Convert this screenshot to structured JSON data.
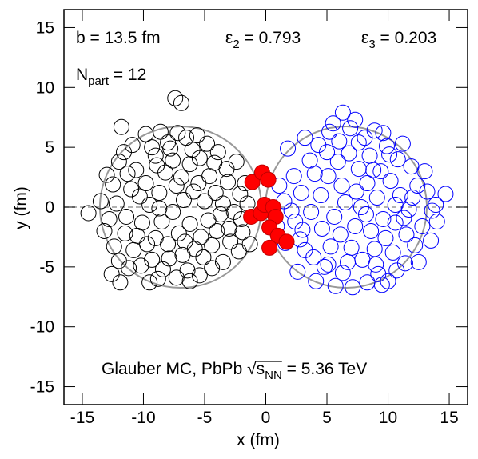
{
  "chart_data": {
    "type": "scatter",
    "xlabel": "x (fm)",
    "ylabel": "y (fm)",
    "xlim": [
      -16.5,
      16.5
    ],
    "xticks": [
      -15,
      -10,
      -5,
      0,
      5,
      10,
      15
    ],
    "ylim": [
      -16.5,
      16.5
    ],
    "yticks": [
      -15,
      -10,
      -5,
      0,
      5,
      10,
      15
    ],
    "annotations": {
      "b": "b = 13.5 fm",
      "eps2": {
        "symbol": "ε",
        "sub": "2",
        "rest": " = 0.793"
      },
      "eps3": {
        "symbol": "ε",
        "sub": "3",
        "rest": " = 0.203"
      },
      "npart": {
        "symbol": "N",
        "sub": "part",
        "rest": " = 12"
      },
      "footer": {
        "prefix": "Glauber MC,   PbPb ",
        "sqrt": "√",
        "s": "s",
        "sub": "NN",
        "suffix": " = 5.36 TeV"
      }
    },
    "series": [
      {
        "color": "#000000",
        "filled": false,
        "x": [
          -14.5,
          -7.4,
          -6.9,
          -11.8,
          -12.6,
          -11.9,
          -9.5,
          -13.0,
          -12.0,
          -1.3,
          -1.7,
          -12.8,
          -12.2,
          -11.5,
          -11.0,
          -10.6,
          -10.9,
          -9.8,
          -9.0,
          -8.6,
          -8.0,
          -7.2,
          -6.5,
          -5.6,
          -4.8,
          -3.9,
          -3.2,
          -2.4,
          -2.1,
          -2.6,
          -3.0,
          -2.2,
          -3.5,
          -4.4,
          -5.4,
          -6.4,
          -7.3,
          -8.4,
          -9.3,
          -10.2,
          -10.8,
          -11.2,
          -12.4,
          -10.1,
          -9.5,
          -9.8,
          -8.7,
          -8.2,
          -7.6,
          -6.9,
          -6.2,
          -5.4,
          -4.6,
          -4.1,
          -5.0,
          -5.9,
          -6.7,
          -7.6,
          -8.5,
          -9.0,
          -8.0,
          -7.1,
          -6.2,
          -5.3,
          -4.4,
          -3.7,
          -4.7,
          -5.8,
          -6.8,
          -7.9,
          -9.7,
          -11.4,
          -12.5,
          -11.3,
          -10.3,
          -8.9,
          -7.3,
          -6.0,
          -4.2,
          -3.1,
          -2.9,
          -1.9,
          -5.1,
          -6.6,
          -8.7,
          -10.5,
          -7.8,
          -9.3,
          -11.6,
          -13.2,
          -12.0,
          -13.5,
          -5.5,
          -3.5,
          -4.0,
          -1.5,
          -2.0,
          -6.2,
          -8.8
        ],
        "values": [
          -0.5,
          9.1,
          8.7,
          6.7,
          -5.6,
          -6.3,
          -6.3,
          2.7,
          3.8,
          -3.1,
          2.0,
          -1.0,
          0.3,
          -2.2,
          1.5,
          3.1,
          5.2,
          6.1,
          4.3,
          6.3,
          5.4,
          6.2,
          5.8,
          6.0,
          5.3,
          4.6,
          3.2,
          3.8,
          1.1,
          -0.4,
          -1.8,
          -3.7,
          -4.6,
          -5.1,
          -5.7,
          -5.3,
          -5.9,
          -5.2,
          -4.4,
          -4.9,
          -3.6,
          -5.1,
          -3.3,
          -1.3,
          0.2,
          2.0,
          1.2,
          2.9,
          3.9,
          2.5,
          3.6,
          4.1,
          2.6,
          1.2,
          0.5,
          1.3,
          0.6,
          -0.4,
          -1.2,
          -2.6,
          -3.1,
          -2.2,
          -1.4,
          -2.5,
          -3.2,
          -0.6,
          -1.1,
          -3.5,
          -4.0,
          -4.3,
          -3.1,
          -0.8,
          1.9,
          2.8,
          0.9,
          3.5,
          1.8,
          4.8,
          3.7,
          2.1,
          -2.9,
          -2.1,
          -4.2,
          -2.9,
          -0.1,
          -2.4,
          4.9,
          5.0,
          4.6,
          -2.0,
          -4.5,
          0.5,
          2.0,
          0.3,
          -2.0,
          0.3,
          -1.0,
          -6.2,
          -6.0
        ]
      },
      {
        "color": "#0000ff",
        "filled": false,
        "x": [
          14.7,
          13.2,
          6.3,
          8.9,
          10.0,
          5.7,
          7.1,
          2.3,
          1.8,
          0.9,
          3.2,
          1.5,
          2.4,
          2.9,
          3.6,
          4.3,
          5.2,
          6.9,
          8.1,
          9.9,
          10.8,
          11.9,
          12.4,
          13.6,
          12.8,
          12.2,
          11.4,
          10.7,
          9.2,
          8.3,
          6.3,
          4.8,
          3.9,
          2.8,
          3.7,
          4.5,
          5.1,
          5.9,
          6.8,
          7.6,
          8.5,
          9.4,
          10.2,
          11.0,
          11.7,
          10.6,
          9.8,
          8.9,
          7.9,
          7.0,
          6.1,
          5.3,
          4.6,
          5.6,
          6.5,
          7.4,
          8.3,
          9.1,
          8.2,
          7.3,
          9.6,
          10.4,
          11.5,
          12.0,
          10.6,
          9.0,
          6.7,
          5.0,
          3.2,
          2.1,
          1.1,
          1.6,
          2.6,
          4.1,
          7.6,
          9.6,
          11.2,
          13.0,
          14.0,
          13.5,
          12.5,
          8.6,
          6.2,
          5.1,
          7.8,
          10.1,
          4.0,
          3.0,
          6.0,
          8.8,
          11.3,
          9.5,
          7.3,
          5.5,
          13.9
        ],
        "values": [
          1.1,
          1.3,
          7.9,
          6.4,
          -6.2,
          -6.6,
          -6.7,
          2.6,
          4.9,
          -1.6,
          -3.6,
          0.5,
          -1.2,
          1.2,
          3.9,
          5.2,
          6.3,
          6.6,
          5.8,
          5.1,
          4.0,
          3.4,
          1.8,
          -0.3,
          -1.6,
          -3.2,
          -4.7,
          -5.3,
          -5.6,
          -6.3,
          -5.5,
          -5.0,
          -4.2,
          -2.7,
          -0.4,
          1.0,
          2.6,
          3.8,
          4.5,
          3.2,
          4.3,
          3.0,
          2.2,
          1.0,
          -0.2,
          -1.3,
          -2.6,
          -3.5,
          -4.4,
          -3.4,
          -2.3,
          -3.3,
          -1.8,
          -0.8,
          0.4,
          1.3,
          2.0,
          0.8,
          -0.6,
          -1.6,
          -1.0,
          -3.8,
          -2.3,
          0.8,
          0.2,
          -4.8,
          -4.6,
          4.6,
          5.8,
          -0.3,
          1.8,
          -3.0,
          -5.4,
          -6.2,
          5.4,
          6.2,
          5.3,
          3.0,
          -1.2,
          -2.8,
          -4.6,
          -2.0,
          1.8,
          -4.8,
          0.0,
          4.4,
          2.8,
          -1.9,
          5.5,
          3.1,
          -0.9,
          -6.5,
          7.3,
          7.0,
          0.2
        ]
      },
      {
        "color": "#ff0000",
        "filled": true,
        "x": [
          -1.1,
          -0.3,
          0.2,
          -1.2,
          -0.4,
          -0.1,
          0.6,
          0.8,
          0.3,
          1.0,
          1.7,
          0.3
        ],
        "values": [
          2.1,
          2.9,
          2.3,
          -0.8,
          -0.5,
          0.2,
          0.0,
          -0.8,
          -1.7,
          -2.4,
          -2.9,
          -3.4
        ]
      }
    ]
  }
}
